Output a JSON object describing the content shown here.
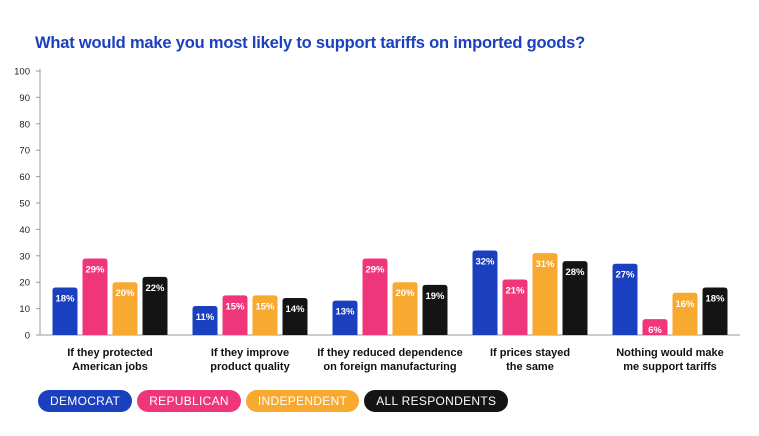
{
  "title": "What would make you most likely to support tariffs on imported goods?",
  "legend": [
    {
      "label": "DEMOCRAT",
      "color": "#1a3fbf",
      "text_color": "#ffffff"
    },
    {
      "label": "REPUBLICAN",
      "color": "#f0367a",
      "text_color": "#ffffff"
    },
    {
      "label": "INDEPENDENT",
      "color": "#f8a930",
      "text_color": "#ffffff"
    },
    {
      "label": "ALL RESPONDENTS",
      "color": "#141414",
      "text_color": "#ffffff"
    }
  ],
  "chart_data": {
    "type": "bar",
    "title": "What would make you most likely to support tariffs on imported goods?",
    "ylim": [
      0,
      100
    ],
    "yticks": [
      0,
      10,
      20,
      30,
      40,
      50,
      60,
      70,
      80,
      90,
      100
    ],
    "grid": false,
    "legend_position": "bottom-left",
    "categories": [
      [
        "If they protected",
        "American jobs"
      ],
      [
        "If they improve",
        "product quality"
      ],
      [
        "If they reduced dependence",
        "on foreign manufacturing"
      ],
      [
        "If prices stayed",
        "the same"
      ],
      [
        "Nothing would make",
        "me support tariffs"
      ]
    ],
    "series": [
      {
        "name": "DEMOCRAT",
        "color": "#1a3fbf",
        "values": [
          18,
          11,
          13,
          32,
          27
        ]
      },
      {
        "name": "REPUBLICAN",
        "color": "#f0367a",
        "values": [
          29,
          15,
          29,
          21,
          6
        ]
      },
      {
        "name": "INDEPENDENT",
        "color": "#f8a930",
        "values": [
          20,
          15,
          20,
          31,
          16
        ]
      },
      {
        "name": "ALL RESPONDENTS",
        "color": "#141414",
        "values": [
          22,
          14,
          19,
          28,
          18
        ]
      }
    ]
  }
}
